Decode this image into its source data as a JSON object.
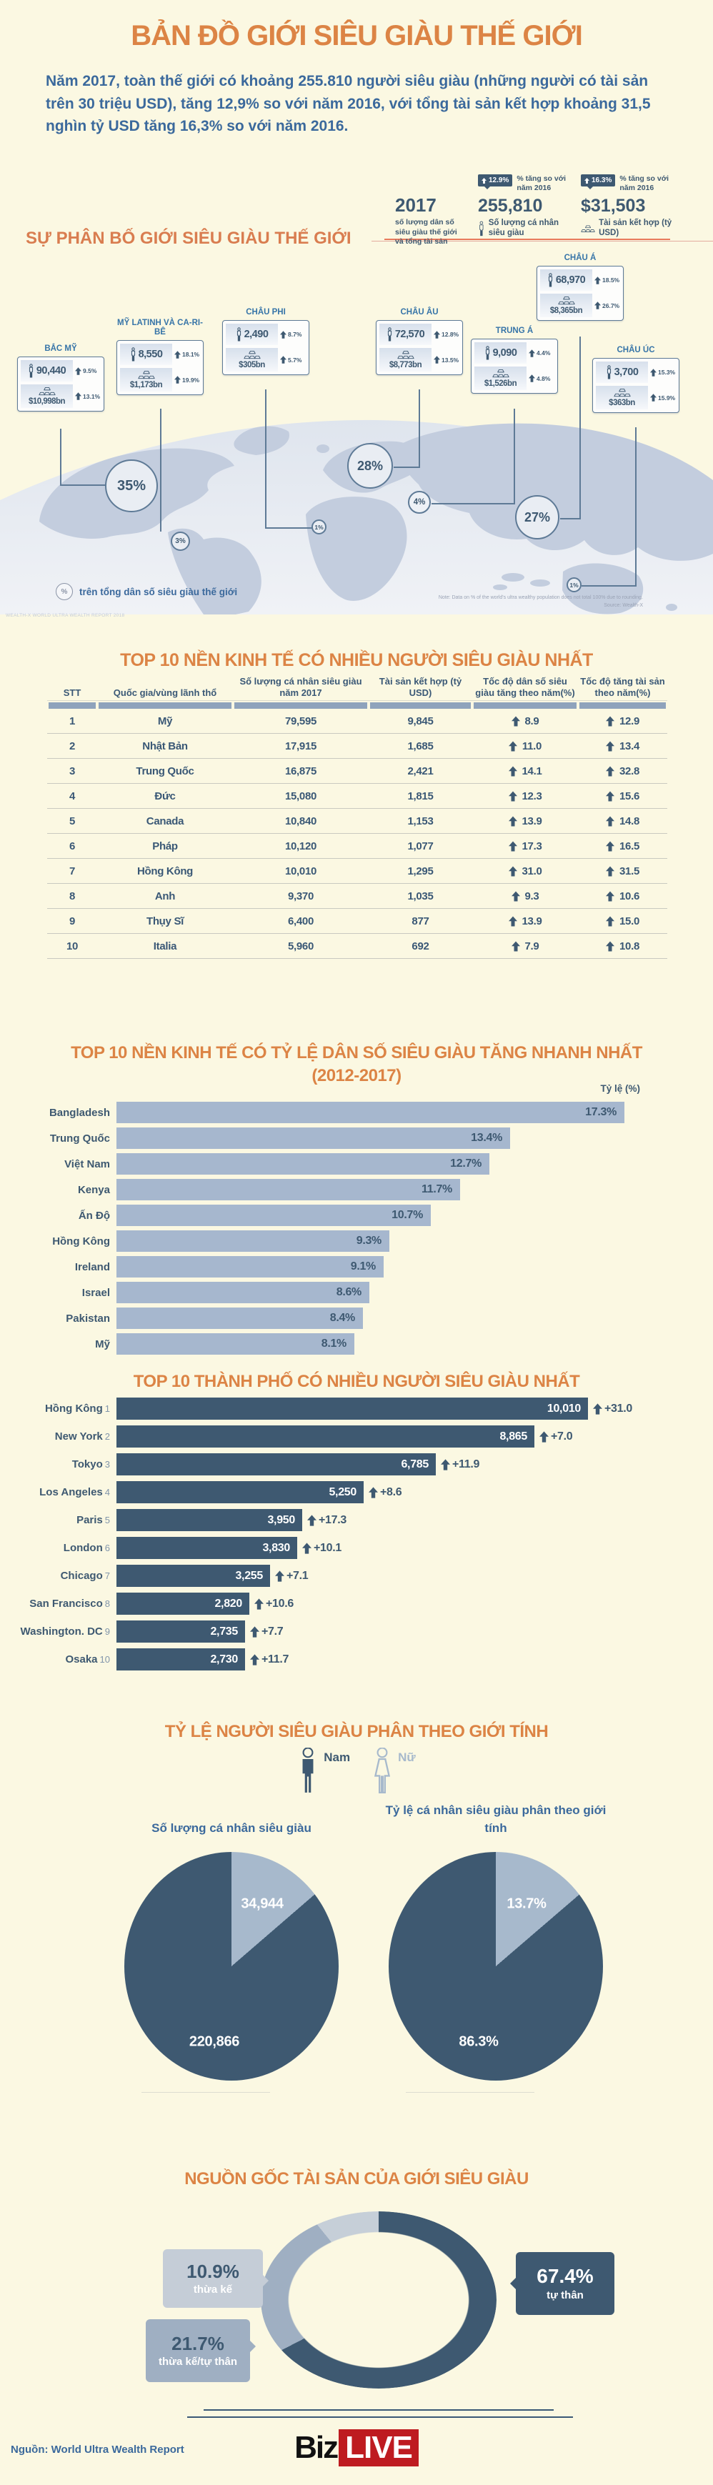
{
  "colors": {
    "accent_orange": "#DC8445",
    "navy": "#3E5971",
    "intro_blue": "#3B699C",
    "bar_light": "#A6B7CE",
    "pie_dark": "#3E5971",
    "pie_light": "#A7B9CC",
    "donut_mid": "#9FAFC2",
    "donut_light": "#C6CFD8",
    "logo_red": "#BE1B20",
    "line_orange": "#E8795B",
    "background": "#FBF8E2"
  },
  "header": {
    "title": "BẢN ĐỒ GIỚI SIÊU GIÀU THẾ GIỚI",
    "intro": "Năm 2017, toàn thế giới có khoảng 255.810 người siêu giàu (những người có tài sản trên 30 triệu USD), tăng 12,9% so với năm 2016, với tổng tài sản kết hợp khoảng 31,5 nghìn tỷ USD tăng 16,3% so với năm 2016."
  },
  "summary": {
    "year": "2017",
    "year_caption": "số lượng dân số siêu giàu thế giới và tổng tài sản",
    "population": {
      "value": "255,810",
      "badge": "12.9%",
      "badge_caption": "% tăng so với năm 2016",
      "label": "Số lượng cá nhân siêu giàu"
    },
    "wealth": {
      "value": "$31,503",
      "badge": "16.3%",
      "badge_caption": "% tăng so với năm 2016",
      "label": "Tài sản kết hợp (tỷ USD)"
    }
  },
  "distribution": {
    "section_title": "SỰ PHÂN BỐ GIỚI SIÊU GIÀU THẾ GIỚI",
    "legend_symbol": "%",
    "legend": "trên tổng dân số siêu giàu thế giới",
    "note": "Note: Data on % of the world's ultra wealthy population does not total 100% due to rounding.",
    "note_source": "Source: Wealth-X",
    "watermark": "WEALTH-X WORLD ULTRA WEALTH REPORT 2018"
  },
  "gender": {
    "section_title": "TỶ LỆ NGƯỜI SIÊU GIÀU PHÂN THEO GIỚI TÍNH",
    "legend_male": "Nam",
    "legend_female": "Nữ"
  },
  "wealth_origin": {
    "section_title": "NGUỒN GỐC TÀI SẢN CỦA GIỚI SIÊU GIÀU"
  },
  "footer": {
    "source": "Nguồn: World Ultra Wealth Report",
    "logo_black": "Biz",
    "logo_red": "LIVE"
  },
  "chart_data": [
    {
      "id": "region_distribution",
      "type": "table",
      "title": "SỰ PHÂN BỐ GIỚI SIÊU GIÀU THẾ GIỚI",
      "columns": [
        "region",
        "ultra_wealthy_population",
        "population_change_vs_2016",
        "combined_wealth",
        "wealth_change_vs_2016",
        "share_of_world_ultra_wealthy"
      ],
      "rows": [
        {
          "name": "BẮC MỸ",
          "population": "90,440",
          "pop_change": "9.5%",
          "wealth": "$10,998bn",
          "wealth_change": "13.1%",
          "share": "35%"
        },
        {
          "name": "MỸ LATINH VÀ CA-RI-BÊ",
          "population": "8,550",
          "pop_change": "18.1%",
          "wealth": "$1,173bn",
          "wealth_change": "19.9%",
          "share": "3%"
        },
        {
          "name": "CHÂU PHI",
          "population": "2,490",
          "pop_change": "8.7%",
          "wealth": "$305bn",
          "wealth_change": "5.7%",
          "share": "1%"
        },
        {
          "name": "CHÂU ÂU",
          "population": "72,570",
          "pop_change": "12.8%",
          "wealth": "$8,773bn",
          "wealth_change": "13.5%",
          "share": "28%"
        },
        {
          "name": "TRUNG Á",
          "population": "9,090",
          "pop_change": "4.4%",
          "wealth": "$1,526bn",
          "wealth_change": "4.8%",
          "share": "4%"
        },
        {
          "name": "CHÂU Á",
          "population": "68,970",
          "pop_change": "18.5%",
          "wealth": "$8,365bn",
          "wealth_change": "26.7%",
          "share": "27%"
        },
        {
          "name": "CHÂU ÚC",
          "population": "3,700",
          "pop_change": "15.3%",
          "wealth": "$363bn",
          "wealth_change": "15.9%",
          "share": "1%"
        }
      ]
    },
    {
      "id": "top_economies",
      "type": "table",
      "title": "TOP 10 NỀN KINH TẾ CÓ NHIỀU NGƯỜI SIÊU GIÀU NHẤT",
      "columns": [
        "STT",
        "Quốc gia/vùng lãnh thổ",
        "Số lượng cá nhân siêu giàu năm 2017",
        "Tài sản kết hợp (tỷ USD)",
        "Tốc độ dân số siêu giàu tăng theo năm(%)",
        "Tốc độ tăng tài sản theo năm(%)"
      ],
      "rows": [
        [
          "1",
          "Mỹ",
          "79,595",
          "9,845",
          "8.9",
          "12.9"
        ],
        [
          "2",
          "Nhật Bản",
          "17,915",
          "1,685",
          "11.0",
          "13.4"
        ],
        [
          "3",
          "Trung Quốc",
          "16,875",
          "2,421",
          "14.1",
          "32.8"
        ],
        [
          "4",
          "Đức",
          "15,080",
          "1,815",
          "12.3",
          "15.6"
        ],
        [
          "5",
          "Canada",
          "10,840",
          "1,153",
          "13.9",
          "14.8"
        ],
        [
          "6",
          "Pháp",
          "10,120",
          "1,077",
          "17.3",
          "16.5"
        ],
        [
          "7",
          "Hồng Kông",
          "10,010",
          "1,295",
          "31.0",
          "31.5"
        ],
        [
          "8",
          "Anh",
          "9,370",
          "1,035",
          "9.3",
          "10.6"
        ],
        [
          "9",
          "Thụy Sĩ",
          "6,400",
          "877",
          "13.9",
          "15.0"
        ],
        [
          "10",
          "Italia",
          "5,960",
          "692",
          "7.9",
          "10.8"
        ]
      ]
    },
    {
      "id": "fastest_growth",
      "type": "bar",
      "orientation": "horizontal",
      "title": "TOP 10 NỀN KINH TẾ CÓ TỶ LỆ DÂN SỐ SIÊU GIÀU TĂNG NHANH NHẤT",
      "subtitle": "(2012-2017)",
      "axis_label": "Tỷ lệ (%)",
      "categories": [
        "Bangladesh",
        "Trung Quốc",
        "Việt Nam",
        "Kenya",
        "Ấn Độ",
        "Hồng Kông",
        "Ireland",
        "Israel",
        "Pakistan",
        "Mỹ"
      ],
      "values": [
        17.3,
        13.4,
        12.7,
        11.7,
        10.7,
        9.3,
        9.1,
        8.6,
        8.4,
        8.1
      ],
      "value_labels": [
        "17.3%",
        "13.4%",
        "12.7%",
        "11.7%",
        "10.7%",
        "9.3%",
        "9.1%",
        "8.6%",
        "8.4%",
        "8.1%"
      ],
      "xlim": [
        0,
        18
      ],
      "grid": false,
      "legend": "none"
    },
    {
      "id": "top_cities",
      "type": "bar",
      "orientation": "horizontal",
      "title": "TOP 10 THÀNH PHỐ CÓ NHIỀU NGƯỜI SIÊU GIÀU NHẤT",
      "categories": [
        "Hồng Kông",
        "New York",
        "Tokyo",
        "Los Angeles",
        "Paris",
        "London",
        "Chicago",
        "San Francisco",
        "Washington. DC",
        "Osaka"
      ],
      "ranks": [
        "1",
        "2",
        "3",
        "4",
        "5",
        "6",
        "7",
        "8",
        "9",
        "10"
      ],
      "values": [
        10010,
        8865,
        6785,
        5250,
        3950,
        3830,
        3255,
        2820,
        2735,
        2730
      ],
      "value_labels": [
        "10,010",
        "8,865",
        "6,785",
        "5,250",
        "3,950",
        "3,830",
        "3,255",
        "2,820",
        "2,735",
        "2,730"
      ],
      "change_labels": [
        "+31.0",
        "+7.0",
        "+11.9",
        "+8.6",
        "+17.3",
        "+10.1",
        "+7.1",
        "+10.6",
        "+7.7",
        "+11.7"
      ],
      "xlim": [
        0,
        10010
      ],
      "grid": false,
      "legend": "none"
    },
    {
      "id": "gender_count",
      "type": "pie",
      "title": "Số lượng cá nhân siêu giàu",
      "labels": [
        "Nam",
        "Nữ"
      ],
      "values": [
        220866,
        34944
      ],
      "value_labels": [
        "220,866",
        "34,944"
      ]
    },
    {
      "id": "gender_share",
      "type": "pie",
      "title": "Tỷ lệ cá nhân siêu giàu phân theo giới tính",
      "labels": [
        "Nam",
        "Nữ"
      ],
      "values": [
        86.3,
        13.7
      ],
      "value_labels": [
        "86.3%",
        "13.7%"
      ]
    },
    {
      "id": "wealth_origin",
      "type": "pie",
      "donut": true,
      "title": "NGUỒN GỐC TÀI SẢN CỦA GIỚI SIÊU GIÀU",
      "labels": [
        "tự thân",
        "thừa kế/tự thân",
        "thừa kế"
      ],
      "values": [
        67.4,
        21.7,
        10.9
      ],
      "value_labels": [
        "67.4%",
        "21.7%",
        "10.9%"
      ]
    }
  ]
}
